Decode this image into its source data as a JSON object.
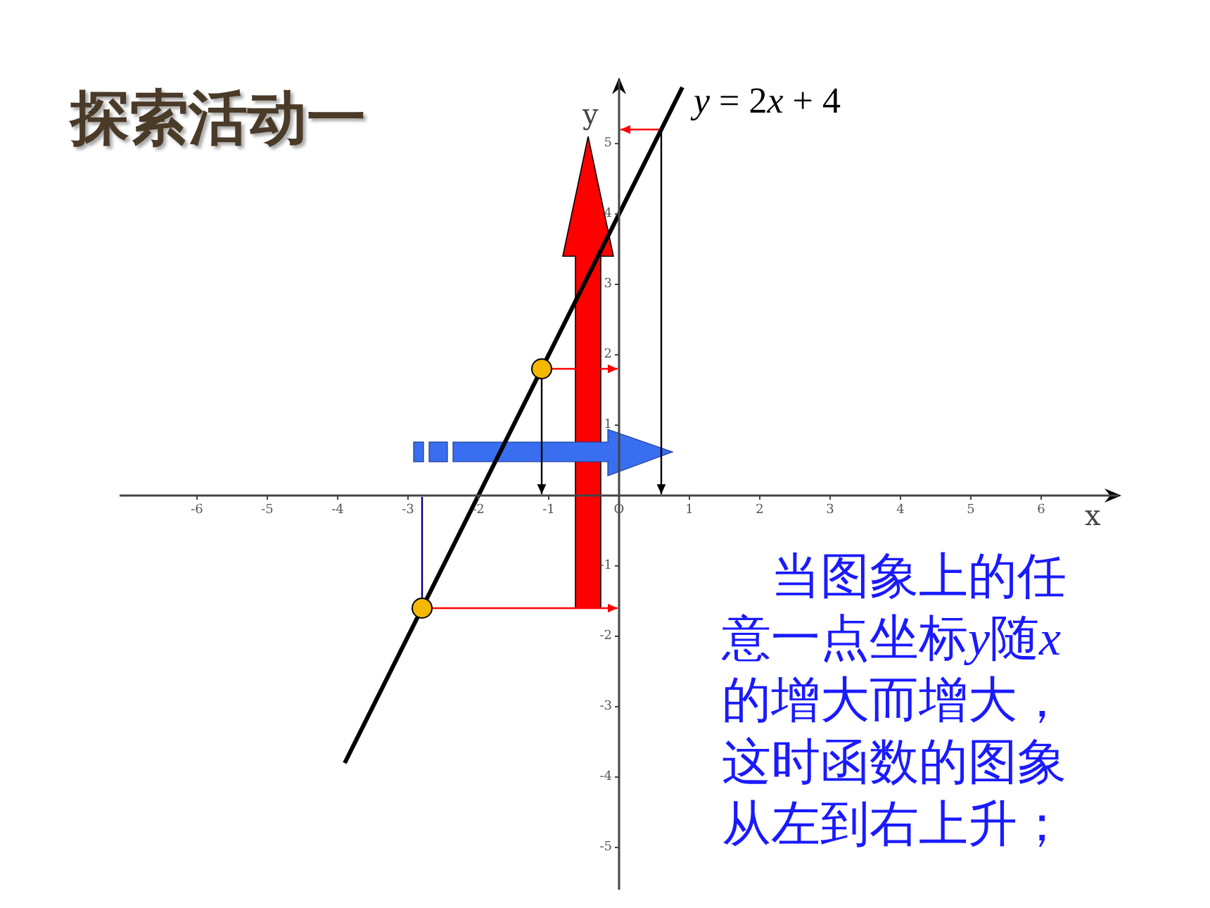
{
  "chart_data": {
    "type": "line",
    "title": "探索活动一",
    "xlabel": "x",
    "ylabel": "y",
    "xlim": [
      -7.1,
      7.1
    ],
    "ylim": [
      -5.6,
      5.9
    ],
    "xticks": [
      -6,
      -5,
      -4,
      -3,
      -2,
      -1,
      {
        "value": 0,
        "label": "O"
      },
      1,
      2,
      3,
      4,
      5,
      6
    ],
    "yticks": [
      -5,
      -4,
      -3,
      -2,
      -1,
      1,
      2,
      3,
      4,
      5
    ],
    "series": [
      {
        "name": "y = 2x + 4",
        "color": "#000000",
        "x": [
          -3.9,
          0.9
        ],
        "values": [
          -3.8,
          5.8
        ],
        "marker": "none"
      },
      {
        "type": "scatter",
        "color": "#f5b800",
        "x": [
          -2.8,
          -1.1
        ],
        "values": [
          -1.6,
          1.8
        ],
        "marker": "circle"
      }
    ],
    "annotations": [
      "当图象上的任意一点坐标y随x的增大而增大，这时函数的图象从左到右上升；"
    ]
  }
}
